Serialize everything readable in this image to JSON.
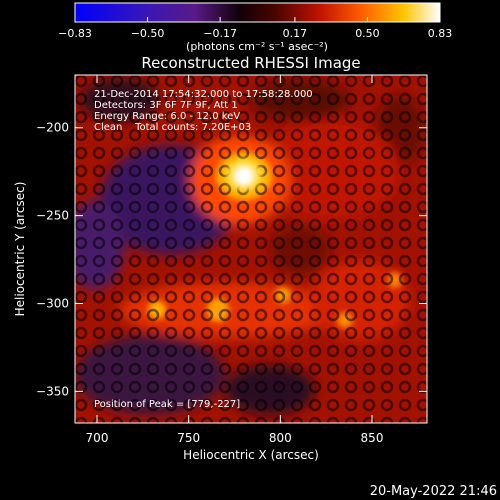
{
  "colorbar": {
    "tick_labels": [
      "-0.83",
      "-0.50",
      "-0.17",
      "0.17",
      "0.50",
      "0.83"
    ],
    "tick_values": [
      -0.83,
      -0.5,
      -0.17,
      0.17,
      0.5,
      0.83
    ],
    "range": [
      -0.83,
      0.83
    ],
    "unit_label": "(photons cm⁻² s⁻¹ asec⁻²)",
    "colors": [
      "#0000ff",
      "#3a17b5",
      "#5a1a86",
      "#000000",
      "#7a0a00",
      "#d11800",
      "#ff6a00",
      "#ffc400",
      "#ffffff"
    ]
  },
  "plot": {
    "title": "Reconstructed RHESSI Image",
    "xlabel": "Heliocentric X (arcsec)",
    "ylabel": "Heliocentric Y (arcsec)",
    "xlim": [
      688,
      880
    ],
    "ylim": [
      -368,
      -170
    ],
    "xticks": [
      700,
      750,
      800,
      850
    ],
    "xtick_labels": [
      "700",
      "750",
      "800",
      "850"
    ],
    "yticks": [
      -200,
      -250,
      -300,
      -350
    ],
    "ytick_labels": [
      "-200",
      "-250",
      "-300",
      "-350"
    ],
    "annotations": [
      "21-Dec-2014 17:54:32.000 to 17:58:28.000",
      "Detectors: 3F 6F 7F 9F, Att 1",
      "Energy Range: 6.0 - 12.0 keV",
      "Clean    Total counts: 7.20E+03"
    ],
    "peak_label": "Position of Peak = [779,-227]",
    "peak": [
      779,
      -227
    ]
  },
  "footer": {
    "timestamp": "20-May-2022 21:46"
  }
}
